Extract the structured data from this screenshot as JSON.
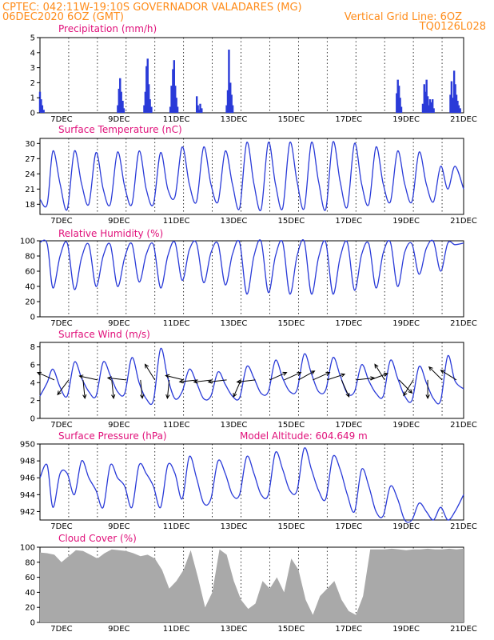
{
  "header": {
    "line1_left": "CPTEC:   042:11W-19:10S   GOVERNADOR VALADARES (MG)",
    "line2_left": "06DEC2020 6OZ (GMT)",
    "line2_right": "Vertical Grid Line: 6OZ",
    "line3_right": "TQ0126L028"
  },
  "colors": {
    "series": "#2a3bd8",
    "cloud": "#a9a9a9",
    "title": "#e0107a",
    "header": "#ff8c1a"
  },
  "x_axis": {
    "start_day": 6.25,
    "end_day": 21.0,
    "grid_days": [
      7.25,
      8.25,
      9.25,
      10.25,
      11.25,
      12.25,
      13.25,
      14.25,
      15.25,
      16.25,
      17.25,
      18.25,
      19.25,
      20.25
    ],
    "tick_days": [
      7,
      9,
      11,
      13,
      15,
      17,
      19,
      21
    ],
    "tick_labels": [
      "7DEC",
      "9DEC",
      "11DEC",
      "13DEC",
      "15DEC",
      "17DEC",
      "19DEC",
      "21DEC"
    ]
  },
  "chart_data": [
    {
      "id": "precip",
      "type": "bar",
      "title": "Precipitation (mm/h)",
      "ylim": [
        0,
        5
      ],
      "yticks": [
        0,
        1,
        2,
        3,
        4,
        5
      ],
      "grid": true,
      "x": [
        6.25,
        6.29,
        6.33,
        6.38,
        8.96,
        9.0,
        9.04,
        9.08,
        9.13,
        9.17,
        9.88,
        9.92,
        9.96,
        10.0,
        10.04,
        10.08,
        10.13,
        10.79,
        10.83,
        10.88,
        10.92,
        10.96,
        11.0,
        11.04,
        11.71,
        11.75,
        11.79,
        11.83,
        11.88,
        12.75,
        12.79,
        12.83,
        12.88,
        12.92,
        12.96,
        18.67,
        18.71,
        18.75,
        18.79,
        18.83,
        19.58,
        19.63,
        19.67,
        19.71,
        19.75,
        19.79,
        19.83,
        19.88,
        19.92,
        19.96,
        20.54,
        20.58,
        20.63,
        20.67,
        20.71,
        20.75,
        20.79,
        20.83,
        20.88
      ],
      "values": [
        1.4,
        0.9,
        0.5,
        0.2,
        0.5,
        1.6,
        2.3,
        1.4,
        0.8,
        0.3,
        0.5,
        1.4,
        3.1,
        3.6,
        1.9,
        0.9,
        0.4,
        0.4,
        1.8,
        2.9,
        3.5,
        1.8,
        1.0,
        0.4,
        1.1,
        0.5,
        0.2,
        0.6,
        0.3,
        0.5,
        1.5,
        4.2,
        2.0,
        1.2,
        0.5,
        1.3,
        2.2,
        1.8,
        1.0,
        0.4,
        0.6,
        1.9,
        1.4,
        2.2,
        1.1,
        0.5,
        0.9,
        0.7,
        0.9,
        0.3,
        1.2,
        2.1,
        1.0,
        2.8,
        1.9,
        1.2,
        0.8,
        0.5,
        0.3
      ]
    },
    {
      "id": "temperature",
      "type": "line",
      "title": "Surface Temperature (nC)",
      "ylim": [
        16,
        31
      ],
      "yticks": [
        18,
        21,
        24,
        27,
        30
      ],
      "grid": true,
      "x": [
        6.25,
        6.5,
        6.7,
        6.95,
        7.2,
        7.45,
        7.7,
        7.95,
        8.2,
        8.45,
        8.7,
        8.95,
        9.2,
        9.45,
        9.7,
        9.95,
        10.2,
        10.45,
        10.7,
        10.95,
        11.2,
        11.45,
        11.7,
        11.95,
        12.2,
        12.45,
        12.7,
        12.95,
        13.2,
        13.45,
        13.7,
        13.95,
        14.2,
        14.45,
        14.7,
        14.95,
        15.2,
        15.45,
        15.7,
        15.95,
        16.2,
        16.45,
        16.7,
        16.95,
        17.2,
        17.45,
        17.7,
        17.95,
        18.2,
        18.45,
        18.7,
        18.95,
        19.2,
        19.45,
        19.7,
        19.95,
        20.2,
        20.45,
        20.7,
        21.0
      ],
      "values": [
        19,
        18,
        28.5,
        22,
        17,
        28.5,
        22,
        18,
        28.2,
        21,
        18,
        28.3,
        21.5,
        18,
        28.5,
        21,
        18,
        28.2,
        21,
        19.5,
        29.3,
        22,
        18.5,
        29.3,
        22,
        18.5,
        28.5,
        22,
        17.2,
        30.2,
        22,
        17,
        30.2,
        22,
        17.2,
        30.2,
        22.5,
        17.2,
        30.2,
        22.5,
        17,
        30.3,
        22.5,
        17.5,
        30,
        22,
        18,
        29.3,
        22,
        18.5,
        28.5,
        22,
        18.5,
        28.3,
        22,
        18.5,
        25.5,
        21,
        25.5,
        21
      ]
    },
    {
      "id": "humidity",
      "type": "line",
      "title": "Relative Humidity (%)",
      "ylim": [
        0,
        100
      ],
      "yticks": [
        0,
        20,
        40,
        60,
        80,
        100
      ],
      "grid": true,
      "x": [
        6.25,
        6.5,
        6.7,
        6.95,
        7.2,
        7.45,
        7.7,
        7.95,
        8.2,
        8.45,
        8.7,
        8.95,
        9.2,
        9.45,
        9.7,
        9.95,
        10.2,
        10.45,
        10.7,
        10.95,
        11.2,
        11.45,
        11.7,
        11.95,
        12.2,
        12.45,
        12.7,
        12.95,
        13.2,
        13.45,
        13.7,
        13.95,
        14.2,
        14.45,
        14.7,
        14.95,
        15.2,
        15.45,
        15.7,
        15.95,
        16.2,
        16.45,
        16.7,
        16.95,
        17.2,
        17.45,
        17.7,
        17.95,
        18.2,
        18.45,
        18.7,
        18.95,
        19.2,
        19.45,
        19.7,
        19.95,
        20.2,
        20.45,
        20.7,
        21.0
      ],
      "values": [
        98,
        96,
        38,
        80,
        97,
        36,
        78,
        95,
        40,
        80,
        95,
        40,
        78,
        96,
        46,
        82,
        95,
        38,
        80,
        98,
        48,
        88,
        97,
        45,
        84,
        96,
        42,
        82,
        98,
        30,
        80,
        99,
        32,
        80,
        98,
        30,
        80,
        99,
        30,
        78,
        98,
        30,
        78,
        98,
        35,
        82,
        96,
        38,
        84,
        98,
        40,
        85,
        96,
        56,
        90,
        99,
        60,
        97,
        95,
        97
      ]
    },
    {
      "id": "wind",
      "type": "line",
      "title": "Surface Wind (m/s)",
      "ylim": [
        0,
        8.5
      ],
      "yticks": [
        0,
        2,
        4,
        6,
        8
      ],
      "grid": true,
      "x": [
        6.25,
        6.5,
        6.7,
        6.95,
        7.2,
        7.45,
        7.7,
        7.95,
        8.2,
        8.45,
        8.7,
        8.95,
        9.2,
        9.45,
        9.7,
        9.95,
        10.2,
        10.45,
        10.7,
        10.95,
        11.2,
        11.45,
        11.7,
        11.95,
        12.2,
        12.45,
        12.7,
        12.95,
        13.2,
        13.45,
        13.7,
        13.95,
        14.2,
        14.45,
        14.7,
        14.95,
        15.2,
        15.45,
        15.7,
        15.95,
        16.2,
        16.45,
        16.7,
        16.95,
        17.2,
        17.45,
        17.7,
        17.95,
        18.2,
        18.45,
        18.7,
        18.95,
        19.2,
        19.45,
        19.7,
        19.95,
        20.2,
        20.45,
        20.7,
        21.0
      ],
      "values": [
        2.5,
        4,
        5.5,
        3.5,
        2.5,
        6.3,
        4.5,
        3,
        2.5,
        6.3,
        4.8,
        3,
        2.8,
        6.8,
        4,
        2.2,
        2,
        7.8,
        4.5,
        2.2,
        3,
        5.5,
        4,
        2.2,
        2.5,
        5.2,
        3.8,
        2.5,
        2.3,
        5.8,
        4.5,
        2.8,
        3,
        6.5,
        4.5,
        3,
        3.2,
        7.2,
        5,
        3,
        3.2,
        6.8,
        4.8,
        2.8,
        3,
        6,
        4.2,
        2.8,
        2.5,
        6.5,
        4.5,
        2.5,
        2,
        5.8,
        4,
        2.2,
        2,
        7,
        4.2,
        3.3
      ],
      "arrows": {
        "x": [
          6.75,
          7.25,
          7.75,
          8.25,
          8.75,
          9.25,
          9.75,
          10.25,
          10.75,
          11.25,
          11.75,
          12.25,
          12.75,
          13.25,
          13.75,
          14.25,
          14.75,
          15.25,
          15.75,
          16.25,
          16.75,
          17.25,
          17.75,
          18.25,
          18.75,
          19.25,
          19.75,
          20.25,
          20.75
        ],
        "u": [
          -0.9,
          -0.6,
          0.1,
          -0.9,
          0.1,
          -0.9,
          0.1,
          -0.5,
          -0.1,
          -0.8,
          -1.0,
          -0.9,
          -0.9,
          -0.4,
          -0.9,
          0.9,
          0.9,
          0.9,
          0.9,
          0.9,
          0.4,
          0.9,
          0.8,
          -0.5,
          0.7,
          -0.5,
          0,
          -0.7,
          -0.8
        ],
        "v": [
          0.4,
          -0.8,
          -1,
          0.2,
          -1,
          0.1,
          -1,
          0.8,
          -1,
          0.2,
          -0.1,
          -0.1,
          -0.1,
          -0.9,
          -0.1,
          0.4,
          0.4,
          0.5,
          0.4,
          0.3,
          -0.9,
          0.1,
          0.3,
          0.8,
          -0.7,
          -0.8,
          -1,
          0.7,
          0.5
        ]
      }
    },
    {
      "id": "pressure",
      "type": "line",
      "title": "Surface Pressure (hPa)",
      "annotation": "Model Altitude: 604.649 m",
      "ylim": [
        941,
        950
      ],
      "yticks": [
        942,
        944,
        946,
        948,
        950
      ],
      "grid": true,
      "x": [
        6.25,
        6.5,
        6.7,
        6.95,
        7.2,
        7.45,
        7.7,
        7.95,
        8.2,
        8.45,
        8.7,
        8.95,
        9.2,
        9.45,
        9.7,
        9.95,
        10.2,
        10.45,
        10.7,
        10.95,
        11.2,
        11.45,
        11.7,
        11.95,
        12.2,
        12.45,
        12.7,
        12.95,
        13.2,
        13.45,
        13.7,
        13.95,
        14.2,
        14.45,
        14.7,
        14.95,
        15.2,
        15.45,
        15.7,
        15.95,
        16.2,
        16.45,
        16.7,
        16.95,
        17.2,
        17.45,
        17.7,
        17.95,
        18.2,
        18.45,
        18.7,
        18.95,
        19.2,
        19.45,
        19.7,
        19.95,
        20.2,
        20.45,
        20.7,
        21.0
      ],
      "values": [
        946,
        947.5,
        942.5,
        946.5,
        946.5,
        944,
        948,
        946,
        944.5,
        942.5,
        947.5,
        946,
        945,
        942.5,
        947.5,
        946.5,
        945,
        942.5,
        947.5,
        946.5,
        943.5,
        948.5,
        946,
        943,
        943.5,
        948,
        946.5,
        944,
        944,
        948.5,
        946.5,
        944,
        944,
        949,
        947,
        944.5,
        944.5,
        949.5,
        947,
        944.5,
        943.5,
        948.5,
        947,
        944,
        942,
        947,
        945,
        942,
        941.5,
        945,
        943.5,
        941,
        941,
        943,
        942,
        941,
        942.5,
        941,
        942,
        944
      ]
    },
    {
      "id": "cloud",
      "type": "area",
      "title": "Cloud Cover (%)",
      "ylim": [
        0,
        100
      ],
      "yticks": [
        0,
        20,
        40,
        60,
        80,
        100
      ],
      "grid": true,
      "x": [
        6.25,
        6.5,
        6.75,
        7.0,
        7.25,
        7.5,
        7.75,
        8.0,
        8.25,
        8.5,
        8.75,
        9.0,
        9.25,
        9.5,
        9.75,
        10.0,
        10.25,
        10.5,
        10.75,
        11.0,
        11.25,
        11.5,
        11.75,
        12.0,
        12.25,
        12.5,
        12.75,
        13.0,
        13.25,
        13.5,
        13.75,
        14.0,
        14.25,
        14.5,
        14.75,
        15.0,
        15.25,
        15.5,
        15.75,
        16.0,
        16.25,
        16.5,
        16.75,
        17.0,
        17.25,
        17.5,
        17.75,
        18.0,
        18.25,
        18.5,
        18.75,
        19.0,
        19.25,
        19.5,
        19.75,
        20.0,
        20.25,
        20.5,
        20.75,
        21.0
      ],
      "values": [
        93,
        92,
        90,
        80,
        88,
        96,
        95,
        90,
        85,
        92,
        97,
        96,
        95,
        92,
        88,
        90,
        85,
        70,
        45,
        55,
        70,
        96,
        60,
        20,
        40,
        97,
        90,
        55,
        30,
        18,
        25,
        55,
        45,
        60,
        40,
        85,
        70,
        30,
        10,
        35,
        45,
        55,
        30,
        15,
        10,
        35,
        97,
        97,
        97,
        98,
        97,
        96,
        97,
        97,
        98,
        97,
        97,
        98,
        97,
        98
      ]
    }
  ]
}
